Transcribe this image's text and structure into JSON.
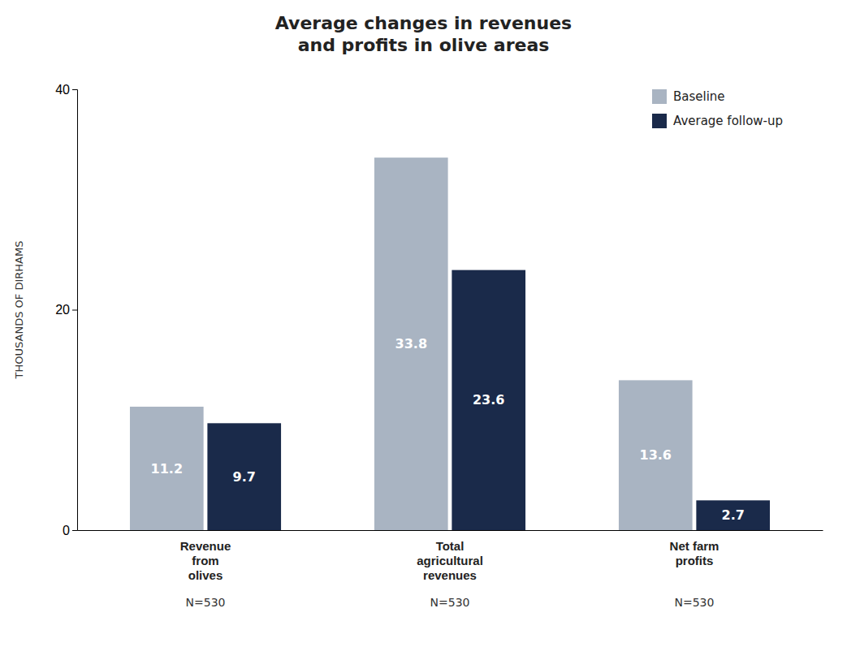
{
  "chart_data": {
    "type": "bar",
    "title": "Average changes in revenues\nand profits in olive areas",
    "ylabel": "THOUSANDS OF DIRHAMS",
    "categories": [
      "Revenue\nfrom\nolives",
      "Total\nagricultural\nrevenues",
      "Net farm\nprofits"
    ],
    "annotations": [
      "N=530",
      "N=530",
      "N=530"
    ],
    "series": [
      {
        "name": "Baseline",
        "color": "#a9b4c2",
        "values": [
          11.2,
          33.8,
          13.6
        ]
      },
      {
        "name": "Average follow-up",
        "color": "#1a2a4a",
        "values": [
          9.7,
          23.6,
          2.7
        ]
      }
    ],
    "ylim": [
      0,
      40
    ],
    "yticks": [
      0,
      20,
      40
    ],
    "grid": false,
    "legend": "upper right",
    "data_labels": true
  }
}
